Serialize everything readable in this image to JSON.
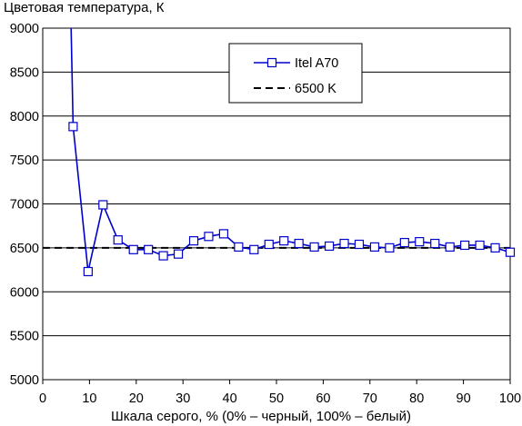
{
  "chart_data": {
    "type": "line",
    "ylabel": "Цветовая температура, К",
    "xlabel": "Шкала серого, % (0% – черный, 100% – белый)",
    "xlim": [
      0,
      100
    ],
    "ylim": [
      5000,
      9000
    ],
    "xticks": [
      0,
      10,
      20,
      30,
      40,
      50,
      60,
      70,
      80,
      90,
      100
    ],
    "yticks": [
      5000,
      5500,
      6000,
      6500,
      7000,
      7500,
      8000,
      8500,
      9000
    ],
    "grid": "horizontal",
    "legend": "top-center",
    "series": [
      {
        "name": "Itel A70",
        "color": "#0000cc",
        "marker": "square",
        "x": [
          6.5,
          9.7,
          12.9,
          16.1,
          19.4,
          22.6,
          25.8,
          29.0,
          32.3,
          35.5,
          38.7,
          41.9,
          45.2,
          48.4,
          51.6,
          54.8,
          58.1,
          61.3,
          64.5,
          67.7,
          71.0,
          74.2,
          77.4,
          80.6,
          83.9,
          87.1,
          90.3,
          93.5,
          96.8,
          100
        ],
        "y": [
          7880,
          6230,
          6990,
          6590,
          6480,
          6480,
          6410,
          6430,
          6580,
          6630,
          6660,
          6510,
          6480,
          6540,
          6580,
          6550,
          6510,
          6520,
          6550,
          6540,
          6510,
          6500,
          6560,
          6570,
          6550,
          6510,
          6530,
          6530,
          6500,
          6450
        ]
      },
      {
        "name": "6500 K",
        "color": "#000000",
        "dashed": true,
        "y": 6500
      }
    ]
  }
}
